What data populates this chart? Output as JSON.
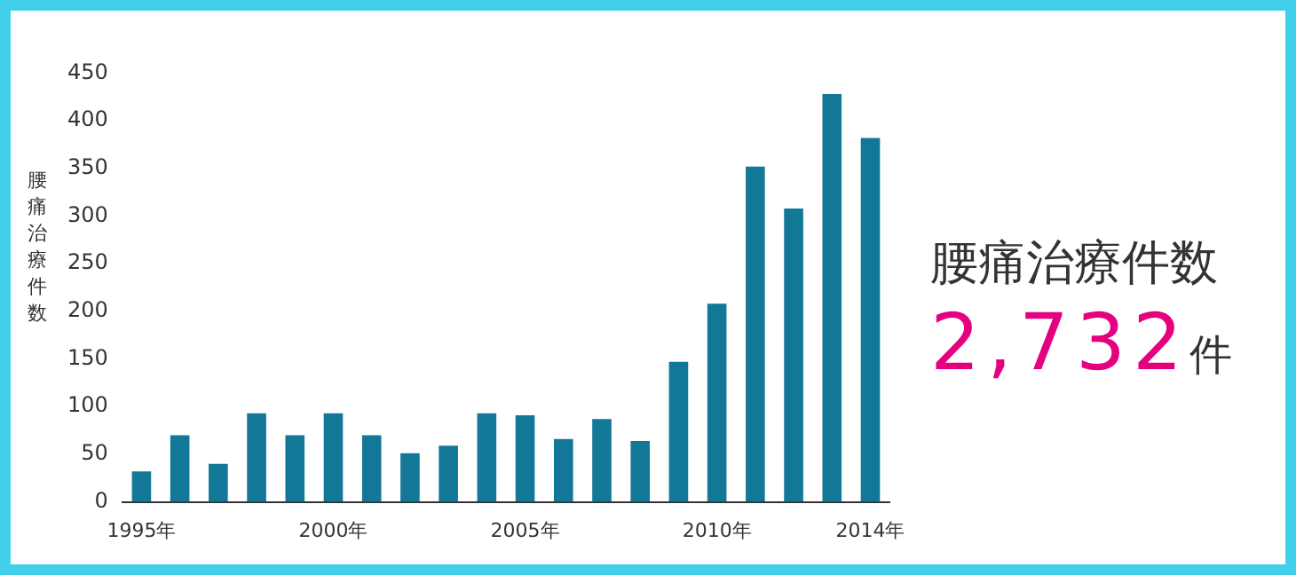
{
  "chart_data": {
    "type": "bar",
    "ylabel": "腰痛治療件数",
    "categories": [
      "1995年",
      null,
      null,
      null,
      null,
      "2000年",
      null,
      null,
      null,
      null,
      "2005年",
      null,
      null,
      null,
      null,
      "2010年",
      null,
      null,
      null,
      "2014年"
    ],
    "values": [
      32,
      70,
      40,
      93,
      70,
      93,
      70,
      51,
      59,
      93,
      91,
      66,
      87,
      64,
      147,
      208,
      352,
      308,
      428,
      382
    ],
    "color": "#137898",
    "ylim": [
      0,
      450
    ],
    "yticks": [
      0,
      50,
      100,
      150,
      200,
      250,
      300,
      350,
      400,
      450
    ],
    "grid": false,
    "legend": false,
    "annotations": [
      "腰痛治療件数",
      "2,732件"
    ]
  }
}
